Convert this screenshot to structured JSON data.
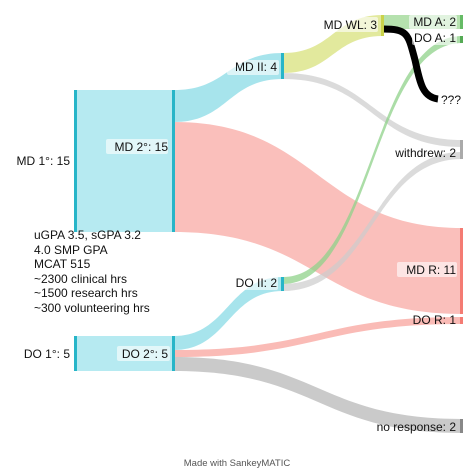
{
  "nodes": {
    "md1": {
      "label": "MD 1°: 15"
    },
    "md2": {
      "label": "MD 2°: 15"
    },
    "mdii": {
      "label": "MD II: 4"
    },
    "mdwl": {
      "label": "MD WL: 3"
    },
    "mda": {
      "label": "MD A: 2"
    },
    "doa": {
      "label": "DO A: 1"
    },
    "unknown": {
      "label": "???"
    },
    "withdrew": {
      "label": "withdrew: 2"
    },
    "mdr": {
      "label": "MD R: 11"
    },
    "do1": {
      "label": "DO 1°: 5"
    },
    "do2": {
      "label": "DO 2°: 5"
    },
    "doii": {
      "label": "DO II: 2"
    },
    "dor": {
      "label": "DO R: 1"
    },
    "noresp": {
      "label": "no response: 2"
    }
  },
  "notes": [
    "uGPA 3.5, sGPA 3.2",
    "4.0 SMP GPA",
    "MCAT 515",
    "~2300 clinical hrs",
    "~1500 research hrs",
    "~300 volunteering hrs"
  ],
  "footer": "Made with SankeyMATIC",
  "colors": {
    "cyan": "#7fd9e3",
    "cyan_bar": "#27b5c8",
    "yellow": "#dde58c",
    "salmon": "#f8a49e",
    "green": "#8fd18a",
    "gray": "#cccccc",
    "gray_dark": "#aaaaaa",
    "black": "#000000"
  }
}
